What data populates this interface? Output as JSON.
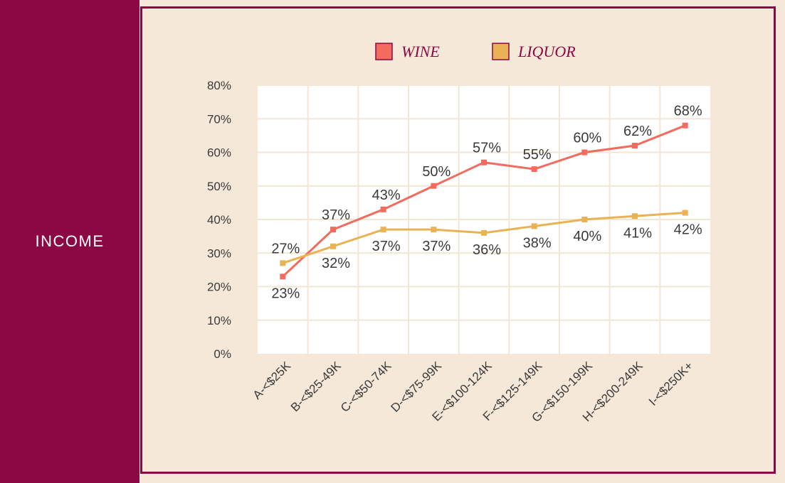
{
  "sidebar": {
    "label": "INCOME"
  },
  "colors": {
    "accent": "#8c0845",
    "wine": "#f26b5e",
    "liquor": "#e9b255",
    "background": "#f5e8d8",
    "plot_background": "#ffffff"
  },
  "chart_data": {
    "type": "line",
    "categories": [
      "A-<$25K",
      "B-<$25-49K",
      "C-<$50-74K",
      "D-<$75-99K",
      "E-<$100-124K",
      "F-<$125-149K",
      "G-<$150-199K",
      "H-<$200-249K",
      "I-<$250K+"
    ],
    "series": [
      {
        "name": "WINE",
        "color": "#f26b5e",
        "values": [
          23,
          37,
          43,
          50,
          57,
          55,
          60,
          62,
          68
        ],
        "labels": [
          "23%",
          "37%",
          "43%",
          "50%",
          "57%",
          "55%",
          "60%",
          "62%",
          "68%"
        ]
      },
      {
        "name": "LIQUOR",
        "color": "#e9b255",
        "values": [
          27,
          32,
          37,
          37,
          36,
          38,
          40,
          41,
          42
        ],
        "labels": [
          "27%",
          "32%",
          "37%",
          "37%",
          "36%",
          "38%",
          "40%",
          "41%",
          "42%"
        ]
      }
    ],
    "yticks": [
      "0%",
      "10%",
      "20%",
      "30%",
      "40%",
      "50%",
      "60%",
      "70%",
      "80%"
    ],
    "ylim": [
      0,
      80
    ],
    "grid": true,
    "legend": "top-center",
    "title": "",
    "xlabel": "",
    "ylabel": ""
  }
}
